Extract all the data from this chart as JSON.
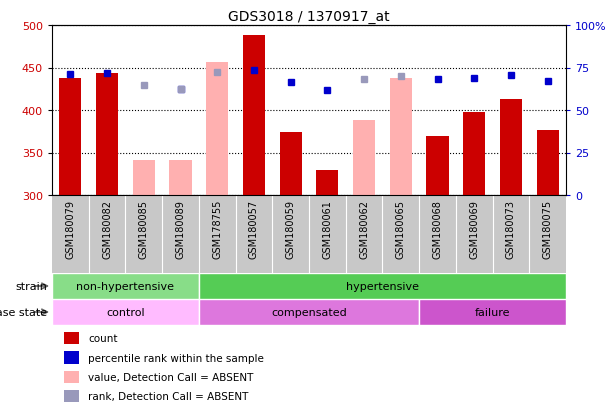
{
  "title": "GDS3018 / 1370917_at",
  "samples": [
    "GSM180079",
    "GSM180082",
    "GSM180085",
    "GSM180089",
    "GSM178755",
    "GSM180057",
    "GSM180059",
    "GSM180061",
    "GSM180062",
    "GSM180065",
    "GSM180068",
    "GSM180069",
    "GSM180073",
    "GSM180075"
  ],
  "count_values": [
    438,
    443,
    null,
    341,
    null,
    488,
    374,
    330,
    null,
    null,
    369,
    398,
    413,
    376
  ],
  "absent_value_bars": [
    null,
    null,
    341,
    341,
    457,
    null,
    null,
    null,
    388,
    438,
    null,
    null,
    null,
    null
  ],
  "percentile_rank": [
    442,
    443,
    null,
    425,
    null,
    447,
    433,
    424,
    null,
    null,
    436,
    438,
    441,
    434
  ],
  "absent_rank": [
    null,
    null,
    430,
    425,
    445,
    null,
    null,
    null,
    437,
    440,
    null,
    null,
    null,
    null
  ],
  "ylim": [
    300,
    500
  ],
  "yticks": [
    300,
    350,
    400,
    450,
    500
  ],
  "bar_color_red": "#cc0000",
  "bar_color_pink": "#ffb0b0",
  "dot_color_blue": "#0000cc",
  "dot_color_lightblue": "#9999bb",
  "gray_bg": "#c8c8c8",
  "strain_groups": [
    {
      "label": "non-hypertensive",
      "start": 0,
      "end": 4,
      "color": "#88dd88"
    },
    {
      "label": "hypertensive",
      "start": 4,
      "end": 14,
      "color": "#55cc55"
    }
  ],
  "disease_groups": [
    {
      "label": "control",
      "start": 0,
      "end": 4,
      "color": "#ffbbff"
    },
    {
      "label": "compensated",
      "start": 4,
      "end": 10,
      "color": "#dd77dd"
    },
    {
      "label": "failure",
      "start": 10,
      "end": 14,
      "color": "#cc55cc"
    }
  ],
  "legend_labels": [
    "count",
    "percentile rank within the sample",
    "value, Detection Call = ABSENT",
    "rank, Detection Call = ABSENT"
  ],
  "legend_colors": [
    "#cc0000",
    "#0000cc",
    "#ffb0b0",
    "#9999bb"
  ]
}
